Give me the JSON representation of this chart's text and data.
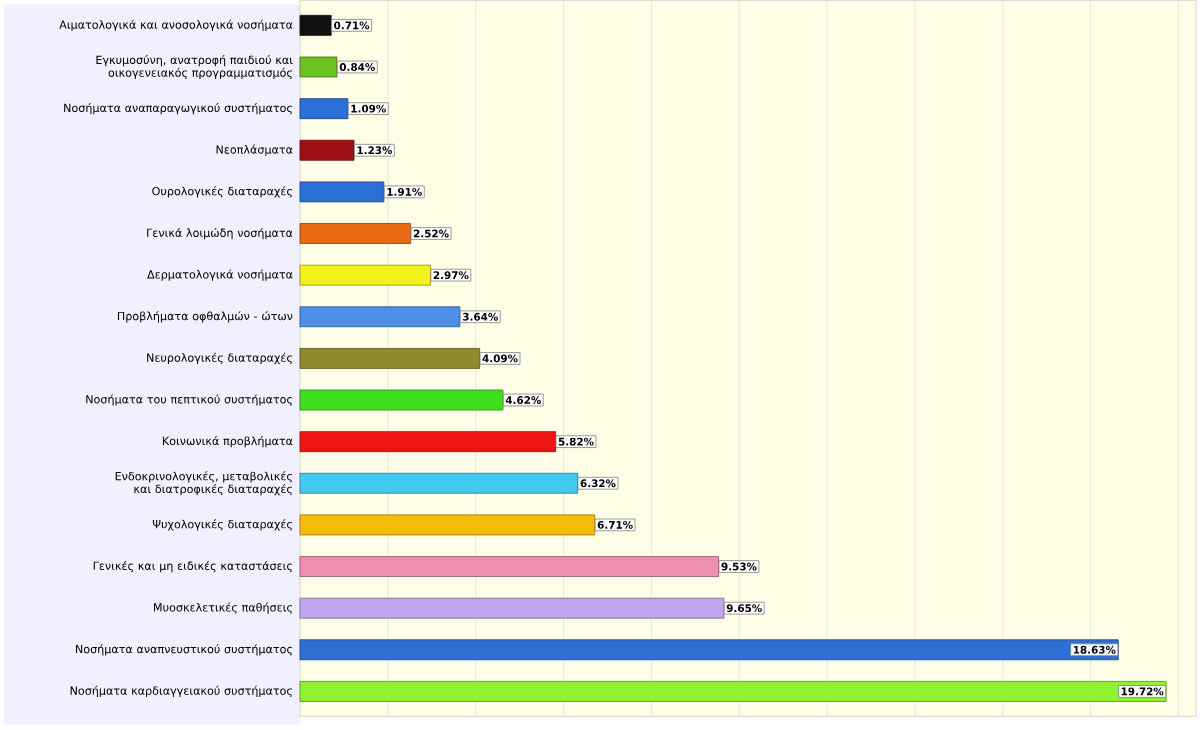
{
  "chart_data": {
    "type": "bar",
    "orientation": "horizontal",
    "categories": [
      "Αιματολογικά και ανοσολογικά νοσήματα",
      "Εγκυμοσύνη, ανατροφή παιδιού και οικογενειακός προγραμματισμός",
      "Νοσήματα αναπαραγωγικού συστήματος",
      "Νεοπλάσματα",
      "Ουρολογικές διαταραχές",
      "Γενικά λοιμώδη νοσήματα",
      "Δερματολογικά νοσήματα",
      "Προβλήματα οφθαλμών - ώτων",
      "Νευρολογικές διαταραχές",
      "Νοσήματα του πεπτικού συστήματος",
      "Κοινωνικά προβλήματα",
      "Ενδοκρινολογικές, μεταβολικές και διατροφικές διαταραχές",
      "Ψυχολογικές διαταραχές",
      "Γενικές και μη ειδικές καταστάσεις",
      "Μυοσκελετικές παθήσεις",
      "Νοσήματα αναπνευστικού συστήματος",
      "Νοσήματα καρδιαγγειακού συστήματος"
    ],
    "values": [
      0.71,
      0.84,
      1.09,
      1.23,
      1.91,
      2.52,
      2.97,
      3.64,
      4.09,
      4.62,
      5.82,
      6.32,
      6.71,
      9.53,
      9.65,
      18.63,
      19.72
    ],
    "value_labels": [
      "0.71%",
      "0.84%",
      "1.09%",
      "1.23%",
      "1.91%",
      "2.52%",
      "2.97%",
      "3.64%",
      "4.09%",
      "4.62%",
      "5.82%",
      "6.32%",
      "6.71%",
      "9.53%",
      "9.65%",
      "18.63%",
      "19.72%"
    ],
    "colors": [
      "#111111",
      "#6cc21e",
      "#2b6fd8",
      "#9e0f14",
      "#2b6fd8",
      "#e8690f",
      "#f2f21a",
      "#4d8ee6",
      "#8f8a2e",
      "#3ee01e",
      "#f01414",
      "#43c8f0",
      "#f5bc0a",
      "#ec8fb0",
      "#c0a6ec",
      "#2e6fd6",
      "#8ff230"
    ],
    "xlim": [
      0,
      20.4
    ],
    "xticks": [
      {
        "value": 2,
        "label": null
      },
      {
        "value": 4,
        "label": null
      },
      {
        "value": 6,
        "label": null
      },
      {
        "value": 8,
        "label": null
      },
      {
        "value": 10,
        "label": null
      },
      {
        "value": 12,
        "label": null
      },
      {
        "value": 14,
        "label": null
      },
      {
        "value": 16,
        "label": null
      },
      {
        "value": 18,
        "label": null
      },
      {
        "value": 20,
        "label": null
      }
    ],
    "grid": "x",
    "tick_labels": "y"
  }
}
